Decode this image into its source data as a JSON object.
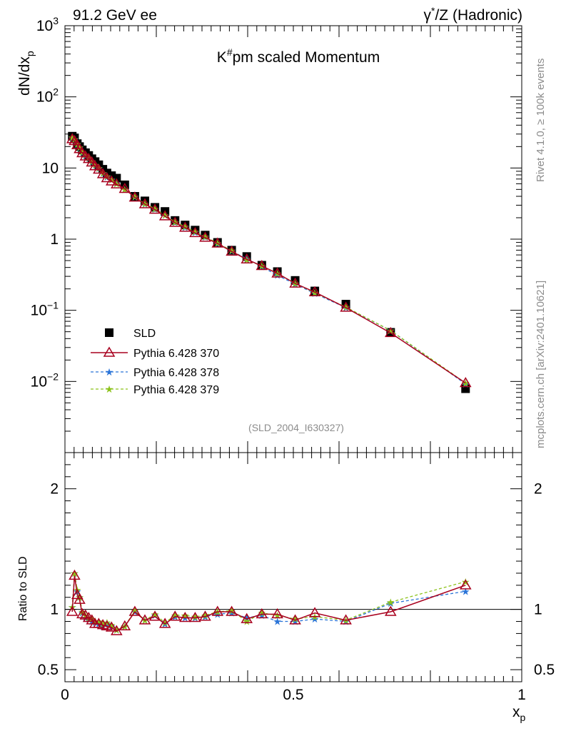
{
  "header": {
    "left": "91.2 GeV ee",
    "right_gamma": "γ",
    "right_star": "*",
    "right_rest": "/Z (Hadronic)"
  },
  "side_labels": {
    "rivet": "Rivet 4.1.0, ≥ 100k events",
    "mcplots": "mcplots.cern.ch [arXiv:2401.10621]"
  },
  "watermark": "(SLD_2004_I630327)",
  "colors": {
    "sld": "#000000",
    "p370": "#a8001e",
    "p378": "#2a74d8",
    "p379": "#8cc21b",
    "unity_line": "#000000"
  },
  "chart_data": [
    {
      "type": "scatter",
      "panel": "main",
      "title_main": "K",
      "title_sup": "#",
      "title_rest": "pm scaled Momentum",
      "ylabel_main": "dN/dx",
      "ylabel_sub": "p",
      "yscale": "log",
      "ylim": [
        0.001,
        1000
      ],
      "xlim": [
        0,
        1
      ],
      "yticks": [
        {
          "v": 0.01,
          "b": "10",
          "e": "−2"
        },
        {
          "v": 0.1,
          "b": "10",
          "e": "−1"
        },
        {
          "v": 1,
          "b": "1",
          "e": ""
        },
        {
          "v": 10,
          "b": "10",
          "e": ""
        },
        {
          "v": 100,
          "b": "10",
          "e": "2"
        },
        {
          "v": 1000,
          "b": "10",
          "e": "3"
        }
      ],
      "legend": [
        {
          "key": "sld",
          "label": "SLD"
        },
        {
          "key": "p370",
          "label": "Pythia 6.428 370"
        },
        {
          "key": "p378",
          "label": "Pythia 6.428 378"
        },
        {
          "key": "p379",
          "label": "Pythia 6.428 379"
        }
      ],
      "x": [
        0.016,
        0.021,
        0.027,
        0.032,
        0.038,
        0.045,
        0.052,
        0.059,
        0.066,
        0.074,
        0.083,
        0.092,
        0.102,
        0.113,
        0.131,
        0.153,
        0.175,
        0.197,
        0.219,
        0.241,
        0.263,
        0.285,
        0.307,
        0.334,
        0.365,
        0.398,
        0.431,
        0.465,
        0.504,
        0.547,
        0.615,
        0.713,
        0.877
      ],
      "series": [
        {
          "name": "SLD",
          "key": "sld",
          "values": [
            28,
            26.5,
            22,
            20,
            18,
            16.4,
            15,
            13.5,
            12.3,
            11.1,
            9.6,
            8.5,
            7.8,
            7.2,
            5.8,
            4.0,
            3.45,
            2.8,
            2.45,
            1.83,
            1.58,
            1.34,
            1.14,
            0.9,
            0.7,
            0.57,
            0.43,
            0.35,
            0.263,
            0.187,
            0.122,
            0.049,
            0.0079
          ]
        },
        {
          "name": "Pythia 6.428 370",
          "key": "p370",
          "values": [
            25.5,
            24,
            21,
            18.5,
            16.2,
            14.6,
            13.4,
            12,
            10.6,
            9.5,
            8.2,
            7.2,
            6.5,
            5.9,
            5.1,
            3.85,
            3.1,
            2.6,
            2.1,
            1.7,
            1.45,
            1.22,
            1.05,
            0.87,
            0.67,
            0.52,
            0.42,
            0.33,
            0.238,
            0.18,
            0.109,
            0.048,
            0.0095
          ]
        },
        {
          "name": "Pythia 6.428 378",
          "key": "p378",
          "values": [
            26.5,
            25,
            21.5,
            19.2,
            16.6,
            15,
            13.7,
            12.2,
            10.9,
            9.8,
            8.4,
            7.5,
            6.9,
            6.1,
            5.0,
            3.9,
            3.1,
            2.65,
            2.16,
            1.72,
            1.46,
            1.25,
            1.07,
            0.86,
            0.68,
            0.53,
            0.41,
            0.31,
            0.234,
            0.172,
            0.109,
            0.052,
            0.0092
          ]
        },
        {
          "name": "Pythia 6.428 379",
          "key": "p379",
          "values": [
            26.8,
            25.3,
            21.8,
            19.4,
            16.8,
            15.2,
            13.9,
            12.4,
            11.1,
            10.0,
            8.5,
            7.6,
            6.8,
            6.0,
            5.0,
            3.95,
            3.15,
            2.68,
            2.18,
            1.74,
            1.5,
            1.27,
            1.08,
            0.88,
            0.69,
            0.51,
            0.42,
            0.33,
            0.24,
            0.176,
            0.111,
            0.052,
            0.0095
          ]
        }
      ]
    },
    {
      "type": "line",
      "panel": "ratio",
      "ylabel": "Ratio to SLD",
      "xlabel_main": "x",
      "xlabel_sub": "p",
      "ylim": [
        0.4,
        2.3
      ],
      "xlim": [
        0,
        1
      ],
      "yticks": [
        {
          "v": 0.5,
          "t": "0.5"
        },
        {
          "v": 1,
          "t": "1"
        },
        {
          "v": 2,
          "t": "2"
        }
      ],
      "xticks": [
        {
          "v": 0,
          "t": "0"
        },
        {
          "v": 0.5,
          "t": "0.5"
        },
        {
          "v": 1,
          "t": "1"
        }
      ],
      "reference": 1.0,
      "series": [
        {
          "name": "Pythia 6.428 370",
          "key": "p370",
          "values": [
            0.98,
            1.28,
            1.12,
            1.08,
            0.96,
            0.95,
            0.93,
            0.91,
            0.88,
            0.88,
            0.87,
            0.86,
            0.85,
            0.82,
            0.86,
            0.98,
            0.91,
            0.94,
            0.88,
            0.94,
            0.93,
            0.93,
            0.94,
            0.98,
            0.98,
            0.92,
            0.96,
            0.96,
            0.91,
            0.97,
            0.91,
            0.98,
            1.2
          ]
        },
        {
          "name": "Pythia 6.428 378",
          "key": "p378",
          "values": [
            1.02,
            1.3,
            1.15,
            1.1,
            0.97,
            0.93,
            0.92,
            0.9,
            0.89,
            0.88,
            0.86,
            0.88,
            0.86,
            0.83,
            0.86,
            0.98,
            0.91,
            0.95,
            0.88,
            0.94,
            0.93,
            0.93,
            0.94,
            0.96,
            0.97,
            0.93,
            0.95,
            0.9,
            0.9,
            0.92,
            0.9,
            1.05,
            1.15
          ]
        },
        {
          "name": "Pythia 6.428 379",
          "key": "p379",
          "values": [
            1.02,
            1.3,
            1.16,
            1.1,
            0.98,
            0.95,
            0.93,
            0.92,
            0.9,
            0.9,
            0.88,
            0.89,
            0.87,
            0.83,
            0.86,
            0.99,
            0.91,
            0.96,
            0.89,
            0.95,
            0.95,
            0.94,
            0.95,
            0.98,
            0.99,
            0.9,
            0.97,
            0.95,
            0.92,
            0.94,
            0.91,
            1.06,
            1.23
          ]
        }
      ]
    }
  ]
}
